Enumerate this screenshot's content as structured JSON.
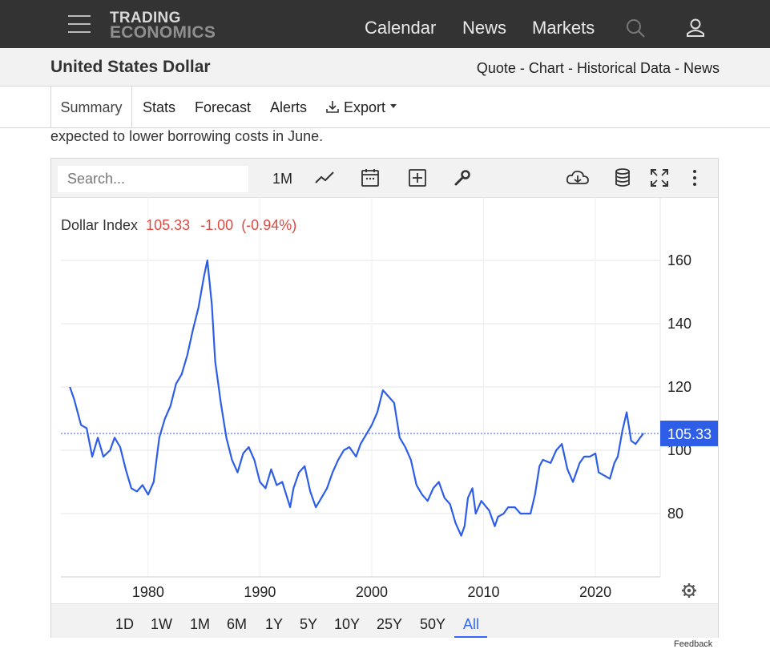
{
  "nav": {
    "logo_line1": "TRADING",
    "logo_line2": "ECONOMICS",
    "links": [
      "Calendar",
      "News",
      "Markets"
    ],
    "icons": [
      "menu-icon",
      "search-icon",
      "user-icon"
    ]
  },
  "header": {
    "title": "United States Dollar",
    "links": [
      "Quote",
      "Chart",
      "Historical Data",
      "News"
    ],
    "separator": " - "
  },
  "tabs": {
    "summary": "Summary",
    "stats": "Stats",
    "forecast": "Forecast",
    "alerts": "Alerts",
    "export": "Export"
  },
  "summary_text": "expected to lower borrowing costs in June.",
  "toolbar": {
    "search_placeholder": "Search...",
    "interval": "1M",
    "icons": [
      "line-chart-icon",
      "calendar-icon",
      "add-compare-icon",
      "wrench-icon",
      "cloud-download-icon",
      "database-icon",
      "fullscreen-icon",
      "more-vertical-icon"
    ]
  },
  "chart": {
    "series_name": "Dollar Index",
    "last_value": "105.33",
    "change": "-1.00",
    "change_pct": "(-0.94%)",
    "price_label": "105.33"
  },
  "ranges": [
    "1D",
    "1W",
    "1M",
    "6M",
    "1Y",
    "5Y",
    "10Y",
    "25Y",
    "50Y",
    "All"
  ],
  "active_range": "All",
  "feedback": "Feedback",
  "colors": {
    "line": "#2e5ee8",
    "price_badge": "#2e5ee8",
    "negative": "#e0473f",
    "active": "#3366ff"
  },
  "chart_data": {
    "type": "line",
    "series": [
      {
        "name": "Dollar Index",
        "x": [
          1973.0,
          1973.4,
          1974.0,
          1974.5,
          1975.0,
          1975.5,
          1976.0,
          1976.6,
          1977.0,
          1977.5,
          1978.0,
          1978.5,
          1979.0,
          1979.5,
          1980.0,
          1980.5,
          1981.0,
          1981.5,
          1982.0,
          1982.5,
          1983.0,
          1983.5,
          1984.0,
          1984.5,
          1985.0,
          1985.3,
          1985.7,
          1986.0,
          1986.5,
          1987.0,
          1987.5,
          1988.0,
          1988.5,
          1989.0,
          1989.5,
          1990.0,
          1990.5,
          1991.0,
          1991.5,
          1992.0,
          1992.7,
          1993.0,
          1993.5,
          1994.0,
          1994.5,
          1995.0,
          1995.5,
          1996.0,
          1996.5,
          1997.0,
          1997.5,
          1998.0,
          1998.6,
          1999.0,
          1999.5,
          2000.0,
          2000.5,
          2001.0,
          2001.5,
          2002.0,
          2002.5,
          2003.0,
          2003.5,
          2004.0,
          2004.5,
          2005.0,
          2005.5,
          2006.0,
          2006.5,
          2007.0,
          2007.5,
          2008.0,
          2008.3,
          2008.6,
          2009.0,
          2009.3,
          2009.8,
          2010.5,
          2011.0,
          2011.3,
          2011.8,
          2012.2,
          2012.8,
          2013.3,
          2013.8,
          2014.2,
          2014.6,
          2015.0,
          2015.3,
          2016.0,
          2016.5,
          2017.0,
          2017.5,
          2018.0,
          2018.6,
          2019.0,
          2019.5,
          2020.0,
          2020.3,
          2020.8,
          2021.3,
          2021.7,
          2022.0,
          2022.4,
          2022.8,
          2023.2,
          2023.6,
          2024.0,
          2024.3
        ],
        "values": [
          120,
          116,
          108,
          107,
          98,
          104,
          98,
          100,
          104,
          101,
          94,
          88,
          87,
          89,
          86,
          90,
          104,
          110,
          114,
          121,
          124,
          130,
          138,
          145,
          155,
          160,
          146,
          128,
          115,
          104,
          97,
          93,
          99,
          101,
          97,
          90,
          88,
          94,
          89,
          90,
          82,
          88,
          93,
          95,
          87,
          82,
          85,
          88,
          93,
          97,
          100,
          101,
          98,
          102,
          105,
          108,
          112,
          119,
          117,
          115,
          104,
          101,
          97,
          89,
          86,
          84,
          88,
          90,
          85,
          83,
          77,
          73,
          76,
          85,
          88,
          80,
          84,
          81,
          76,
          79,
          80,
          82,
          82,
          80,
          80,
          80,
          86,
          95,
          97,
          96,
          100,
          102,
          94,
          90,
          96,
          98,
          98,
          99,
          93,
          92,
          91,
          96,
          98,
          106,
          112,
          103,
          102,
          104,
          105.33
        ]
      }
    ],
    "xlim": [
      1972.2,
      2025.8
    ],
    "ylim": [
      60,
      180
    ],
    "x_ticks": [
      1980,
      1990,
      2000,
      2010,
      2020
    ],
    "y_ticks": [
      80,
      100,
      120,
      140,
      160
    ],
    "current_value": 105.33,
    "grid": true
  }
}
